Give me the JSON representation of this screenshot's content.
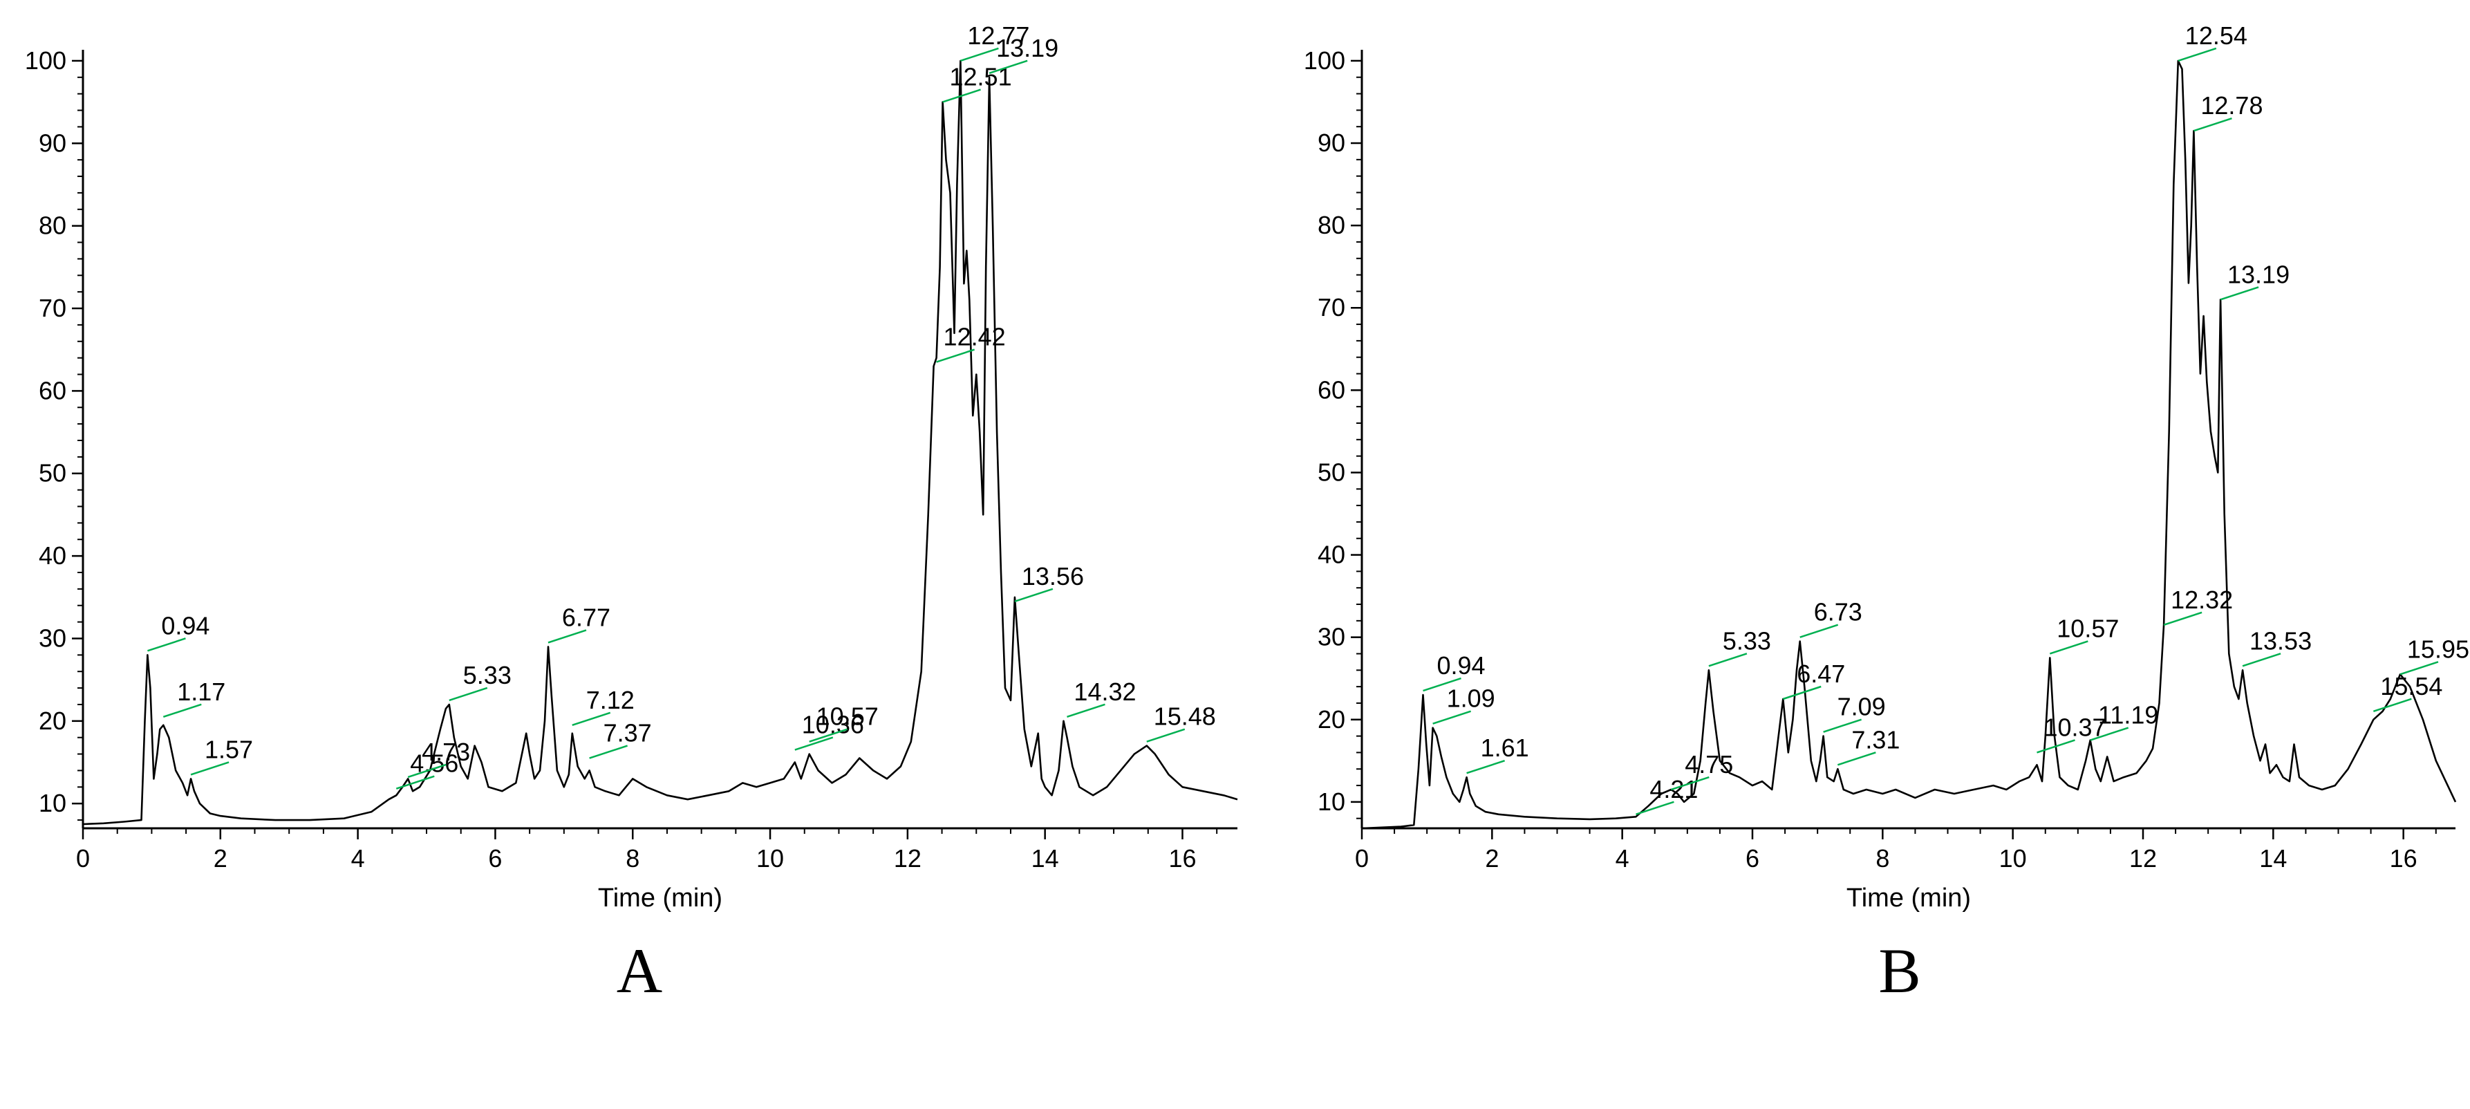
{
  "chart_data": [
    {
      "type": "line",
      "panel_label": "A",
      "xlabel": "Time (min)",
      "ylabel": "",
      "xlim": [
        0,
        16.8
      ],
      "ylim": [
        7,
        101
      ],
      "x_ticks": [
        0,
        2,
        4,
        6,
        8,
        10,
        12,
        14,
        16
      ],
      "y_ticks": [
        10,
        20,
        30,
        40,
        50,
        60,
        70,
        80,
        90,
        100
      ],
      "grid": false,
      "legend": "none",
      "line_color": "#000000",
      "label_marker_color": "#00b050",
      "peak_labels": [
        {
          "text": "0.94",
          "x": 0.94,
          "y": 28.5
        },
        {
          "text": "1.17",
          "x": 1.17,
          "y": 20.5
        },
        {
          "text": "1.57",
          "x": 1.57,
          "y": 13.5
        },
        {
          "text": "4.56",
          "x": 4.56,
          "y": 11.8
        },
        {
          "text": "4.73",
          "x": 4.73,
          "y": 13.2
        },
        {
          "text": "5.33",
          "x": 5.33,
          "y": 22.5
        },
        {
          "text": "6.77",
          "x": 6.77,
          "y": 29.5
        },
        {
          "text": "7.12",
          "x": 7.12,
          "y": 19.5
        },
        {
          "text": "7.37",
          "x": 7.37,
          "y": 15.5
        },
        {
          "text": "10.36",
          "x": 10.36,
          "y": 16.5
        },
        {
          "text": "10.57",
          "x": 10.57,
          "y": 17.5
        },
        {
          "text": "12.42",
          "x": 12.42,
          "y": 63.5
        },
        {
          "text": "12.51",
          "x": 12.51,
          "y": 95
        },
        {
          "text": "12.77",
          "x": 12.77,
          "y": 100
        },
        {
          "text": "13.19",
          "x": 13.19,
          "y": 98.5
        },
        {
          "text": "13.56",
          "x": 13.56,
          "y": 34.5
        },
        {
          "text": "14.32",
          "x": 14.32,
          "y": 20.5
        },
        {
          "text": "15.48",
          "x": 15.48,
          "y": 17.5
        }
      ],
      "series": [
        {
          "x": [
            0,
            0.3,
            0.6,
            0.85,
            0.9,
            0.94,
            0.98,
            1.03,
            1.08,
            1.12,
            1.17,
            1.25,
            1.35,
            1.45,
            1.52,
            1.57,
            1.62,
            1.7,
            1.85,
            2.0,
            2.3,
            2.8,
            3.3,
            3.8,
            4.2,
            4.45,
            4.56,
            4.65,
            4.73,
            4.8,
            4.9,
            5.05,
            5.2,
            5.28,
            5.33,
            5.4,
            5.5,
            5.6,
            5.7,
            5.8,
            5.9,
            6.1,
            6.3,
            6.45,
            6.5,
            6.57,
            6.65,
            6.72,
            6.77,
            6.82,
            6.9,
            7.0,
            7.07,
            7.12,
            7.2,
            7.3,
            7.37,
            7.45,
            7.6,
            7.8,
            8.0,
            8.2,
            8.5,
            8.8,
            9.1,
            9.4,
            9.6,
            9.8,
            10.0,
            10.2,
            10.36,
            10.45,
            10.57,
            10.7,
            10.9,
            11.1,
            11.3,
            11.5,
            11.7,
            11.9,
            12.05,
            12.2,
            12.3,
            12.38,
            12.42,
            12.47,
            12.51,
            12.56,
            12.62,
            12.68,
            12.72,
            12.77,
            12.82,
            12.86,
            12.9,
            12.95,
            13.0,
            13.05,
            13.1,
            13.14,
            13.19,
            13.24,
            13.3,
            13.36,
            13.42,
            13.5,
            13.56,
            13.62,
            13.7,
            13.8,
            13.9,
            13.95,
            14.0,
            14.1,
            14.2,
            14.27,
            14.32,
            14.4,
            14.5,
            14.7,
            14.9,
            15.1,
            15.3,
            15.48,
            15.6,
            15.8,
            16.0,
            16.3,
            16.6,
            16.8
          ],
          "y": [
            7.5,
            7.6,
            7.8,
            8.0,
            20.0,
            28.0,
            24.0,
            13.0,
            16.0,
            19.0,
            19.5,
            18.0,
            14.0,
            12.5,
            11.0,
            13.0,
            11.5,
            10.0,
            8.8,
            8.5,
            8.2,
            8.0,
            8.0,
            8.2,
            9.0,
            10.5,
            11.0,
            12.0,
            13.0,
            11.5,
            12.0,
            14.0,
            19.0,
            21.5,
            22.0,
            18.0,
            14.5,
            13.0,
            17.0,
            15.0,
            12.0,
            11.5,
            12.5,
            18.5,
            16.0,
            13.0,
            14.0,
            20.0,
            29.0,
            23.0,
            14.0,
            12.0,
            13.5,
            18.5,
            14.5,
            13.0,
            14.0,
            12.0,
            11.5,
            11.0,
            13.0,
            12.0,
            11.0,
            10.5,
            11.0,
            11.5,
            12.5,
            12.0,
            12.5,
            13.0,
            15.0,
            13.0,
            16.0,
            14.0,
            12.5,
            13.5,
            15.5,
            14.0,
            13.0,
            14.5,
            17.5,
            26.0,
            45.0,
            63.0,
            64.0,
            75.0,
            95.0,
            88.0,
            84.0,
            67.0,
            85.0,
            100.0,
            73.0,
            77.0,
            71.0,
            57.0,
            62.0,
            55.0,
            45.0,
            75.0,
            98.0,
            80.0,
            55.0,
            38.0,
            24.0,
            22.5,
            35.0,
            28.0,
            19.0,
            14.5,
            18.5,
            13.0,
            12.0,
            11.0,
            14.0,
            20.0,
            18.0,
            14.5,
            12.0,
            11.0,
            12.0,
            14.0,
            16.0,
            17.0,
            16.0,
            13.5,
            12.0,
            11.5,
            11.0,
            10.5
          ]
        }
      ]
    },
    {
      "type": "line",
      "panel_label": "B",
      "xlabel": "Time (min)",
      "ylabel": "",
      "xlim": [
        0,
        16.8
      ],
      "ylim": [
        6.8,
        101
      ],
      "x_ticks": [
        0,
        2,
        4,
        6,
        8,
        10,
        12,
        14,
        16
      ],
      "y_ticks": [
        10,
        20,
        30,
        40,
        50,
        60,
        70,
        80,
        90,
        100
      ],
      "grid": false,
      "legend": "none",
      "line_color": "#000000",
      "label_marker_color": "#00b050",
      "peak_labels": [
        {
          "text": "0.94",
          "x": 0.94,
          "y": 23.5
        },
        {
          "text": "1.09",
          "x": 1.09,
          "y": 19.5
        },
        {
          "text": "1.61",
          "x": 1.61,
          "y": 13.5
        },
        {
          "text": "4.21",
          "x": 4.21,
          "y": 8.5
        },
        {
          "text": "4.75",
          "x": 4.75,
          "y": 11.5
        },
        {
          "text": "5.33",
          "x": 5.33,
          "y": 26.5
        },
        {
          "text": "6.47",
          "x": 6.47,
          "y": 22.5
        },
        {
          "text": "6.73",
          "x": 6.73,
          "y": 30
        },
        {
          "text": "7.09",
          "x": 7.09,
          "y": 18.5
        },
        {
          "text": "7.31",
          "x": 7.31,
          "y": 14.5
        },
        {
          "text": "10.37",
          "x": 10.37,
          "y": 16
        },
        {
          "text": "10.57",
          "x": 10.57,
          "y": 28
        },
        {
          "text": "11.19",
          "x": 11.19,
          "y": 17.5
        },
        {
          "text": "12.32",
          "x": 12.32,
          "y": 31.5
        },
        {
          "text": "12.54",
          "x": 12.54,
          "y": 100
        },
        {
          "text": "12.78",
          "x": 12.78,
          "y": 91.5
        },
        {
          "text": "13.19",
          "x": 13.19,
          "y": 71
        },
        {
          "text": "13.53",
          "x": 13.53,
          "y": 26.5
        },
        {
          "text": "15.54",
          "x": 15.54,
          "y": 21
        },
        {
          "text": "15.95",
          "x": 15.95,
          "y": 25.5
        }
      ],
      "series": [
        {
          "x": [
            0,
            0.3,
            0.6,
            0.8,
            0.87,
            0.94,
            0.99,
            1.04,
            1.09,
            1.15,
            1.22,
            1.3,
            1.4,
            1.5,
            1.56,
            1.61,
            1.66,
            1.75,
            1.9,
            2.1,
            2.5,
            3.0,
            3.5,
            3.9,
            4.21,
            4.4,
            4.6,
            4.75,
            4.85,
            4.95,
            5.1,
            5.2,
            5.28,
            5.33,
            5.4,
            5.5,
            5.65,
            5.8,
            6.0,
            6.15,
            6.3,
            6.4,
            6.47,
            6.55,
            6.62,
            6.68,
            6.73,
            6.8,
            6.9,
            6.98,
            7.04,
            7.09,
            7.15,
            7.25,
            7.31,
            7.4,
            7.55,
            7.75,
            8.0,
            8.2,
            8.5,
            8.8,
            9.1,
            9.4,
            9.7,
            9.9,
            10.1,
            10.25,
            10.37,
            10.45,
            10.5,
            10.57,
            10.64,
            10.72,
            10.85,
            11.0,
            11.12,
            11.19,
            11.27,
            11.35,
            11.45,
            11.55,
            11.7,
            11.9,
            12.05,
            12.15,
            12.25,
            12.32,
            12.4,
            12.47,
            12.54,
            12.6,
            12.65,
            12.7,
            12.74,
            12.78,
            12.83,
            12.88,
            12.93,
            12.98,
            13.04,
            13.1,
            13.15,
            13.19,
            13.25,
            13.32,
            13.4,
            13.47,
            13.53,
            13.6,
            13.7,
            13.8,
            13.88,
            13.95,
            14.05,
            14.15,
            14.25,
            14.32,
            14.4,
            14.55,
            14.75,
            14.95,
            15.15,
            15.35,
            15.54,
            15.68,
            15.8,
            15.95,
            16.1,
            16.3,
            16.5,
            16.8
          ],
          "y": [
            6.8,
            6.9,
            7.0,
            7.2,
            14.0,
            23.0,
            17.0,
            12.0,
            19.0,
            18.0,
            15.5,
            13.0,
            11.0,
            10.0,
            11.5,
            13.0,
            11.0,
            9.5,
            8.8,
            8.5,
            8.2,
            8.0,
            7.9,
            8.0,
            8.2,
            9.5,
            11.0,
            11.5,
            11.0,
            10.0,
            11.0,
            15.0,
            22.0,
            26.0,
            21.0,
            15.0,
            13.5,
            13.0,
            12.0,
            12.5,
            11.5,
            18.0,
            22.5,
            16.0,
            20.0,
            26.0,
            29.5,
            24.0,
            15.0,
            12.5,
            15.0,
            18.0,
            13.0,
            12.5,
            14.0,
            11.5,
            11.0,
            11.5,
            11.0,
            11.5,
            10.5,
            11.5,
            11.0,
            11.5,
            12.0,
            11.5,
            12.5,
            13.0,
            14.5,
            12.5,
            18.0,
            27.5,
            18.0,
            13.0,
            12.0,
            11.5,
            15.0,
            17.5,
            14.0,
            12.5,
            15.5,
            12.5,
            13.0,
            13.5,
            15.0,
            16.5,
            22.0,
            31.5,
            55.0,
            85.0,
            100.0,
            99.0,
            88.0,
            73.0,
            80.0,
            91.5,
            75.0,
            62.0,
            69.0,
            61.0,
            55.0,
            52.0,
            50.0,
            71.0,
            45.0,
            28.0,
            24.0,
            22.5,
            26.0,
            22.0,
            18.0,
            15.0,
            17.0,
            13.5,
            14.5,
            13.0,
            12.5,
            17.0,
            13.0,
            12.0,
            11.5,
            12.0,
            14.0,
            17.0,
            20.0,
            21.0,
            22.5,
            25.5,
            24.0,
            20.0,
            15.0,
            10.0
          ]
        }
      ]
    }
  ]
}
